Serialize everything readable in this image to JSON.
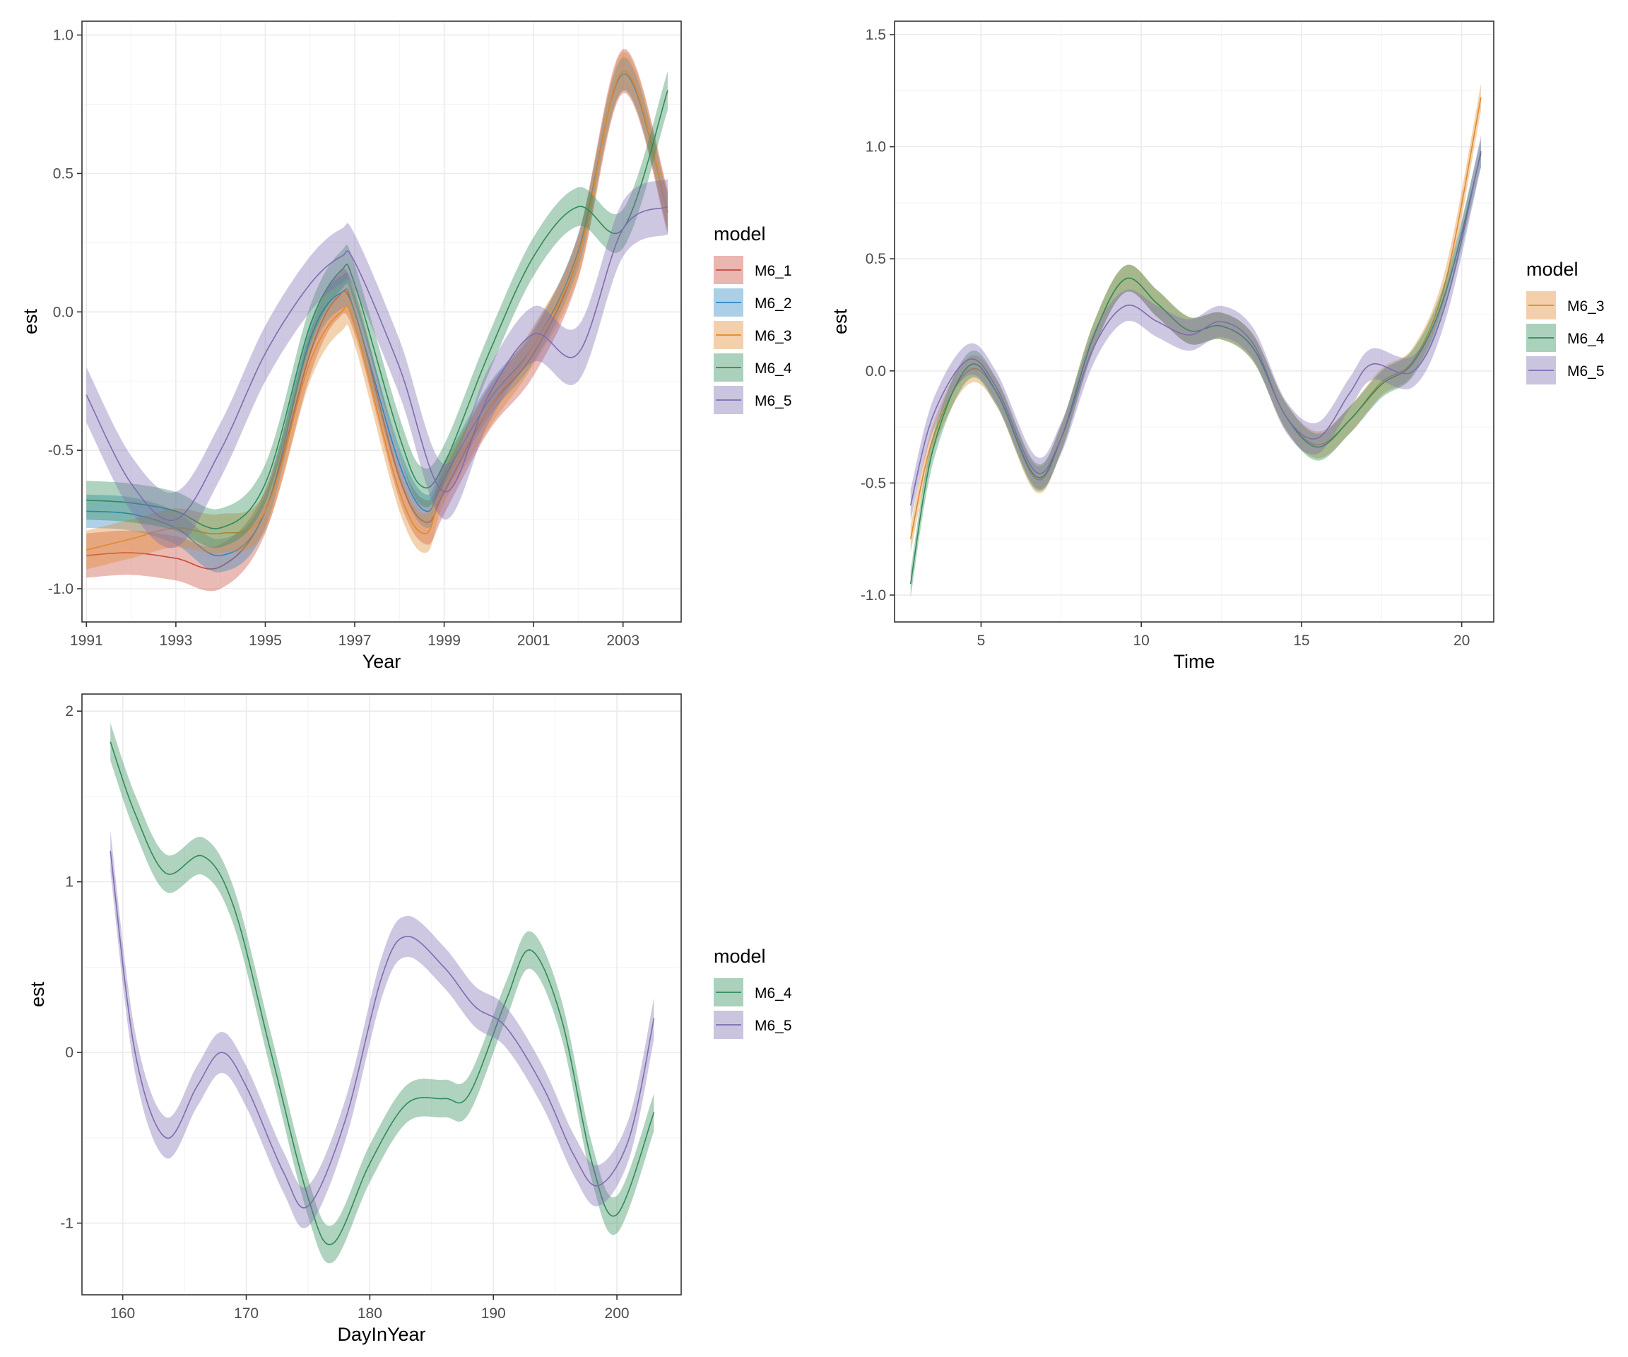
{
  "colors": {
    "M6_1": "#C8493A",
    "M6_2": "#2E86C1",
    "M6_3": "#E08A2C",
    "M6_4": "#2E8B57",
    "M6_5": "#7E6CB0",
    "grid": "#EBEBEB",
    "panel_border": "#333333",
    "axis_text": "#4D4D4D"
  },
  "chart_data": [
    {
      "type": "line",
      "xlabel": "Year",
      "ylabel": "est",
      "xlim": [
        1990.9,
        2004.3
      ],
      "ylim": [
        -1.12,
        1.05
      ],
      "xticks": [
        1991,
        1993,
        1995,
        1997,
        1999,
        2001,
        2003
      ],
      "xtick_labels": [
        "1991",
        "1993",
        "1995",
        "1997",
        "1999",
        "2001",
        "2003"
      ],
      "yticks": [
        -1.0,
        -0.5,
        0.0,
        0.5,
        1.0
      ],
      "ytick_labels": [
        "-1.0",
        "-0.5",
        "0.0",
        "0.5",
        "1.0"
      ],
      "grid": true,
      "legend": {
        "title": "model",
        "position": "right",
        "entries": [
          "M6_1",
          "M6_2",
          "M6_3",
          "M6_4",
          "M6_5"
        ]
      },
      "series": [
        {
          "name": "M6_1",
          "x": [
            1991,
            1992,
            1993,
            1994,
            1995,
            1996,
            1996.6,
            1997,
            1998,
            1998.6,
            1999,
            2000,
            2001,
            2002,
            2003,
            2004
          ],
          "y": [
            -0.88,
            -0.87,
            -0.89,
            -0.92,
            -0.72,
            -0.15,
            0.05,
            0.0,
            -0.6,
            -0.76,
            -0.65,
            -0.35,
            -0.15,
            0.2,
            0.87,
            0.36
          ],
          "band": 0.08
        },
        {
          "name": "M6_2",
          "x": [
            1991,
            1992,
            1993,
            1994,
            1995,
            1996,
            1996.7,
            1997,
            1998,
            1998.6,
            1999,
            2000,
            2001,
            2002,
            2003,
            2004
          ],
          "y": [
            -0.72,
            -0.73,
            -0.78,
            -0.88,
            -0.72,
            -0.1,
            0.07,
            0.0,
            -0.55,
            -0.72,
            -0.6,
            -0.32,
            -0.12,
            0.22,
            0.86,
            0.36
          ],
          "band": 0.06
        },
        {
          "name": "M6_3",
          "x": [
            1991,
            1992,
            1993,
            1994,
            1995,
            1996,
            1996.7,
            1997,
            1998,
            1998.6,
            1999,
            2000,
            2001,
            2002,
            2003,
            2004
          ],
          "y": [
            -0.86,
            -0.82,
            -0.78,
            -0.8,
            -0.72,
            -0.18,
            0.0,
            -0.05,
            -0.65,
            -0.8,
            -0.62,
            -0.35,
            -0.12,
            0.2,
            0.87,
            0.36
          ],
          "band": 0.07
        },
        {
          "name": "M6_4",
          "x": [
            1991,
            1992,
            1993,
            1994,
            1995,
            1996,
            1996.7,
            1997,
            1998,
            1998.5,
            1999,
            2000,
            2001,
            2002,
            2003,
            2004
          ],
          "y": [
            -0.68,
            -0.69,
            -0.72,
            -0.78,
            -0.62,
            -0.05,
            0.15,
            0.1,
            -0.45,
            -0.63,
            -0.55,
            -0.15,
            0.2,
            0.38,
            0.3,
            0.8
          ],
          "band": 0.07
        },
        {
          "name": "M6_5",
          "x": [
            1991,
            1992,
            1993,
            1994,
            1995,
            1996,
            1996.7,
            1997,
            1998,
            1999,
            2000,
            2001,
            2002,
            2003,
            2004
          ],
          "y": [
            -0.3,
            -0.62,
            -0.75,
            -0.5,
            -0.15,
            0.1,
            0.2,
            0.18,
            -0.2,
            -0.65,
            -0.3,
            -0.08,
            -0.15,
            0.3,
            0.38
          ],
          "band": 0.1
        }
      ]
    },
    {
      "type": "line",
      "xlabel": "Time",
      "ylabel": "est",
      "xlim": [
        2.3,
        21.0
      ],
      "ylim": [
        -1.12,
        1.56
      ],
      "xticks": [
        5,
        10,
        15,
        20
      ],
      "xtick_labels": [
        "5",
        "10",
        "15",
        "20"
      ],
      "yticks": [
        -1.0,
        -0.5,
        0.0,
        0.5,
        1.0,
        1.5
      ],
      "ytick_labels": [
        "-1.0",
        "-0.5",
        "0.0",
        "0.5",
        "1.0",
        "1.5"
      ],
      "grid": true,
      "legend": {
        "title": "model",
        "position": "right",
        "entries": [
          "M6_3",
          "M6_4",
          "M6_5"
        ]
      },
      "series": [
        {
          "name": "M6_3",
          "x": [
            2.8,
            3.5,
            4.6,
            5.5,
            6.7,
            7.5,
            8.5,
            9.5,
            10.5,
            11.5,
            12.5,
            13.5,
            14.5,
            15.5,
            16.5,
            17.5,
            18.5,
            19.5,
            20.6
          ],
          "y": [
            -0.75,
            -0.3,
            0.0,
            -0.1,
            -0.48,
            -0.3,
            0.15,
            0.41,
            0.3,
            0.18,
            0.2,
            0.1,
            -0.2,
            -0.33,
            -0.22,
            -0.05,
            0.05,
            0.4,
            1.22
          ],
          "band": 0.06
        },
        {
          "name": "M6_4",
          "x": [
            2.8,
            3.5,
            4.6,
            5.5,
            6.7,
            7.5,
            8.5,
            9.5,
            10.5,
            11.5,
            12.5,
            13.5,
            14.5,
            15.5,
            16.5,
            17.5,
            18.5,
            19.5,
            20.6
          ],
          "y": [
            -0.95,
            -0.35,
            0.02,
            -0.1,
            -0.47,
            -0.3,
            0.15,
            0.41,
            0.3,
            0.18,
            0.2,
            0.1,
            -0.2,
            -0.34,
            -0.22,
            -0.06,
            0.04,
            0.35,
            0.97
          ],
          "band": 0.06
        },
        {
          "name": "M6_5",
          "x": [
            2.8,
            3.5,
            4.6,
            5.5,
            6.7,
            7.5,
            8.5,
            9.5,
            10.5,
            11.5,
            12.5,
            13.5,
            14.5,
            15.5,
            16.5,
            17.2,
            18.5,
            19.5,
            20.6
          ],
          "y": [
            -0.6,
            -0.2,
            0.05,
            -0.08,
            -0.45,
            -0.3,
            0.1,
            0.29,
            0.22,
            0.16,
            0.22,
            0.12,
            -0.2,
            -0.3,
            -0.1,
            0.03,
            0.0,
            0.3,
            0.98
          ],
          "band": 0.07
        }
      ]
    },
    {
      "type": "line",
      "xlabel": "DayInYear",
      "ylabel": "est",
      "xlim": [
        156.7,
        205.2
      ],
      "ylim": [
        -1.42,
        2.1
      ],
      "xticks": [
        160,
        170,
        180,
        190,
        200
      ],
      "xtick_labels": [
        "160",
        "170",
        "180",
        "190",
        "200"
      ],
      "yticks": [
        -1,
        0,
        1,
        2
      ],
      "ytick_labels": [
        "-1",
        "0",
        "1",
        "2"
      ],
      "grid": true,
      "legend": {
        "title": "model",
        "position": "right",
        "entries": [
          "M6_4",
          "M6_5"
        ]
      },
      "series": [
        {
          "name": "M6_4",
          "x": [
            159,
            161,
            163.5,
            166.5,
            169,
            172,
            175,
            177,
            180,
            183,
            186,
            188,
            191,
            193,
            195.5,
            198,
            200,
            203
          ],
          "y": [
            1.82,
            1.4,
            1.05,
            1.15,
            0.85,
            0.0,
            -0.85,
            -1.12,
            -0.65,
            -0.3,
            -0.27,
            -0.25,
            0.3,
            0.6,
            0.2,
            -0.65,
            -0.95,
            -0.35
          ],
          "band": 0.11
        },
        {
          "name": "M6_5",
          "x": [
            159,
            161,
            163.5,
            166,
            168,
            170,
            173,
            175,
            178,
            181,
            183,
            186,
            188.5,
            191,
            194,
            196.5,
            198.5,
            201,
            203
          ],
          "y": [
            1.18,
            0.0,
            -0.5,
            -0.2,
            0.0,
            -0.2,
            -0.7,
            -0.9,
            -0.4,
            0.45,
            0.68,
            0.5,
            0.27,
            0.15,
            -0.2,
            -0.6,
            -0.78,
            -0.5,
            0.2
          ],
          "band": 0.12
        }
      ]
    }
  ]
}
